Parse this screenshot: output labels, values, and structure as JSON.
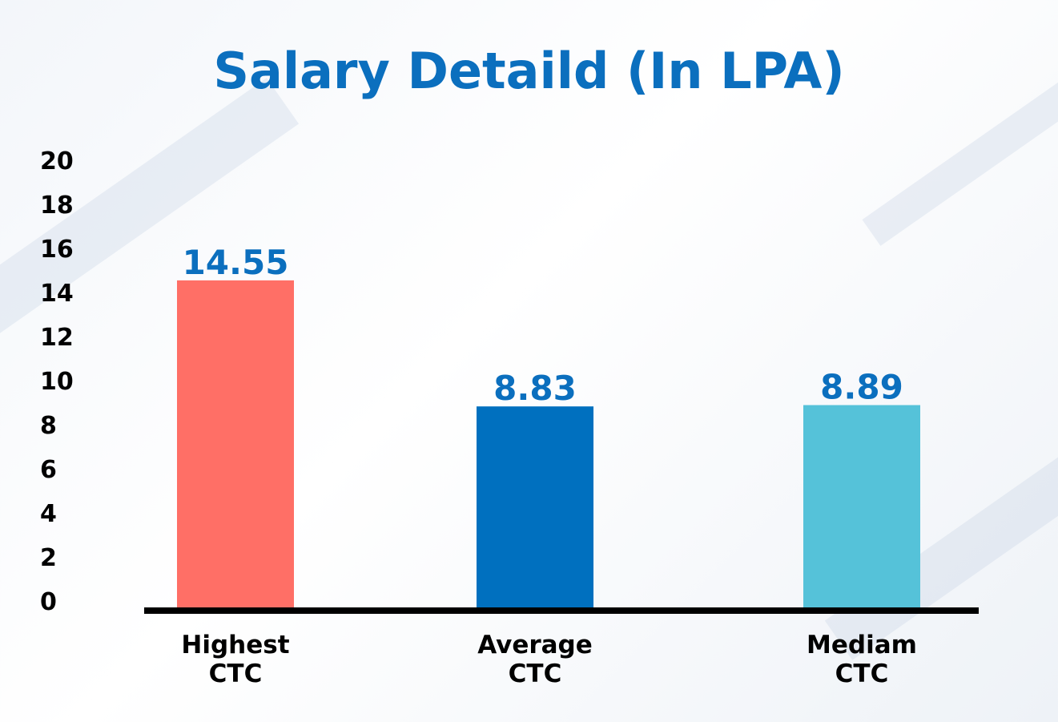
{
  "chart_data": {
    "type": "bar",
    "title": "Salary Detaild (In LPA)",
    "categories": [
      [
        "Highest",
        "CTC"
      ],
      [
        "Average",
        "CTC"
      ],
      [
        "Mediam",
        "CTC"
      ]
    ],
    "values": [
      14.55,
      8.83,
      8.89
    ],
    "value_labels": [
      "14.55",
      "8.83",
      "8.89"
    ],
    "colors": [
      "#ff6f66",
      "#0070bf",
      "#55c2d9"
    ],
    "ylim": [
      0,
      20
    ],
    "yticks": [
      "0",
      "2",
      "4",
      "6",
      "8",
      "10",
      "12",
      "14",
      "16",
      "18",
      "20"
    ],
    "grid": false,
    "legend": "none",
    "label_color": "#0b6fbe"
  }
}
